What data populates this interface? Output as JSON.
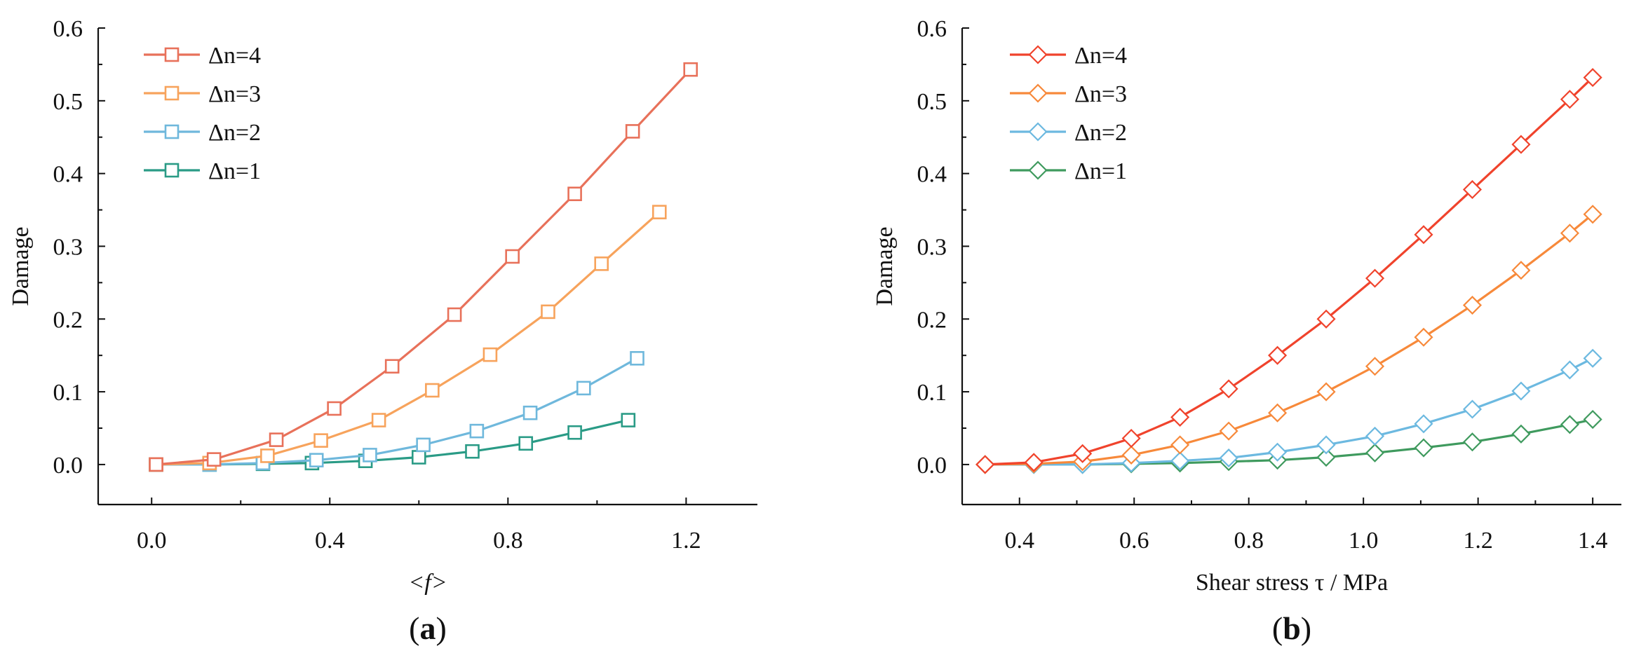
{
  "chart_data": [
    {
      "type": "line",
      "panel_label": "(a)",
      "panel_letter": "a",
      "xlabel": "<f>",
      "ylabel": "Damage",
      "xlim": [
        -0.12,
        1.36
      ],
      "ylim": [
        -0.055,
        0.6
      ],
      "xticks": [
        0.0,
        0.4,
        0.8,
        1.2
      ],
      "xtick_labels": [
        "0.0",
        "0.4",
        "0.8",
        "1.2"
      ],
      "yticks": [
        0.0,
        0.1,
        0.2,
        0.3,
        0.4,
        0.5,
        0.6
      ],
      "ytick_labels": [
        "0.0",
        "0.1",
        "0.2",
        "0.3",
        "0.4",
        "0.5",
        "0.6"
      ],
      "marker": "square",
      "legend_position": "top-left",
      "series": [
        {
          "name": "Δn=4",
          "color": "#e8715a",
          "x": [
            0.01,
            0.14,
            0.28,
            0.41,
            0.54,
            0.68,
            0.81,
            0.95,
            1.08,
            1.21
          ],
          "y": [
            0.0,
            0.007,
            0.034,
            0.077,
            0.135,
            0.206,
            0.286,
            0.372,
            0.458,
            0.543
          ]
        },
        {
          "name": "Δn=3",
          "color": "#f7a35c",
          "x": [
            0.01,
            0.13,
            0.26,
            0.38,
            0.51,
            0.63,
            0.76,
            0.89,
            1.01,
            1.14
          ],
          "y": [
            0.0,
            0.002,
            0.012,
            0.033,
            0.061,
            0.102,
            0.151,
            0.21,
            0.276,
            0.347
          ]
        },
        {
          "name": "Δn=2",
          "color": "#6fb8dc",
          "x": [
            0.01,
            0.13,
            0.25,
            0.37,
            0.49,
            0.61,
            0.73,
            0.85,
            0.97,
            1.09
          ],
          "y": [
            0.0,
            0.0,
            0.002,
            0.006,
            0.013,
            0.027,
            0.046,
            0.071,
            0.105,
            0.146
          ]
        },
        {
          "name": "Δn=1",
          "color": "#2a9b86",
          "x": [
            0.01,
            0.13,
            0.25,
            0.36,
            0.48,
            0.6,
            0.72,
            0.84,
            0.95,
            1.07
          ],
          "y": [
            0.0,
            0.0,
            0.001,
            0.002,
            0.005,
            0.01,
            0.018,
            0.029,
            0.044,
            0.061
          ]
        }
      ]
    },
    {
      "type": "line",
      "panel_label": "(b)",
      "panel_letter": "b",
      "xlabel": "Shear stress τ / MPa",
      "ylabel": "Damage",
      "xlim": [
        0.3,
        1.45
      ],
      "ylim": [
        -0.055,
        0.6
      ],
      "xticks": [
        0.4,
        0.6,
        0.8,
        1.0,
        1.2,
        1.4
      ],
      "xtick_labels": [
        "0.4",
        "0.6",
        "0.8",
        "1.0",
        "1.2",
        "1.4"
      ],
      "yticks": [
        0.0,
        0.1,
        0.2,
        0.3,
        0.4,
        0.5,
        0.6
      ],
      "ytick_labels": [
        "0.0",
        "0.1",
        "0.2",
        "0.3",
        "0.4",
        "0.5",
        "0.6"
      ],
      "marker": "diamond",
      "legend_position": "top-left",
      "series": [
        {
          "name": "Δn=4",
          "color": "#f0432c",
          "x": [
            0.34,
            0.425,
            0.51,
            0.595,
            0.68,
            0.765,
            0.85,
            0.935,
            1.02,
            1.105,
            1.19,
            1.275,
            1.36,
            1.4
          ],
          "y": [
            0.0,
            0.003,
            0.015,
            0.036,
            0.065,
            0.104,
            0.15,
            0.2,
            0.256,
            0.316,
            0.378,
            0.44,
            0.502,
            0.532
          ]
        },
        {
          "name": "Δn=3",
          "color": "#f7893a",
          "x": [
            0.34,
            0.425,
            0.51,
            0.595,
            0.68,
            0.765,
            0.85,
            0.935,
            1.02,
            1.105,
            1.19,
            1.275,
            1.36,
            1.4
          ],
          "y": [
            0.0,
            0.001,
            0.004,
            0.013,
            0.027,
            0.046,
            0.071,
            0.1,
            0.135,
            0.175,
            0.219,
            0.267,
            0.318,
            0.344
          ]
        },
        {
          "name": "Δn=2",
          "color": "#6cb9e0",
          "x": [
            0.34,
            0.425,
            0.51,
            0.595,
            0.68,
            0.765,
            0.85,
            0.935,
            1.02,
            1.105,
            1.19,
            1.275,
            1.36,
            1.4
          ],
          "y": [
            0.0,
            0.0,
            0.0,
            0.002,
            0.005,
            0.009,
            0.017,
            0.027,
            0.039,
            0.056,
            0.076,
            0.101,
            0.13,
            0.146
          ]
        },
        {
          "name": "Δn=1",
          "color": "#3f9a5e",
          "x": [
            0.34,
            0.425,
            0.51,
            0.595,
            0.68,
            0.765,
            0.85,
            0.935,
            1.02,
            1.105,
            1.19,
            1.275,
            1.36,
            1.4
          ],
          "y": [
            0.0,
            0.0,
            0.0,
            0.001,
            0.002,
            0.004,
            0.006,
            0.01,
            0.016,
            0.023,
            0.031,
            0.042,
            0.055,
            0.062
          ]
        }
      ]
    }
  ]
}
